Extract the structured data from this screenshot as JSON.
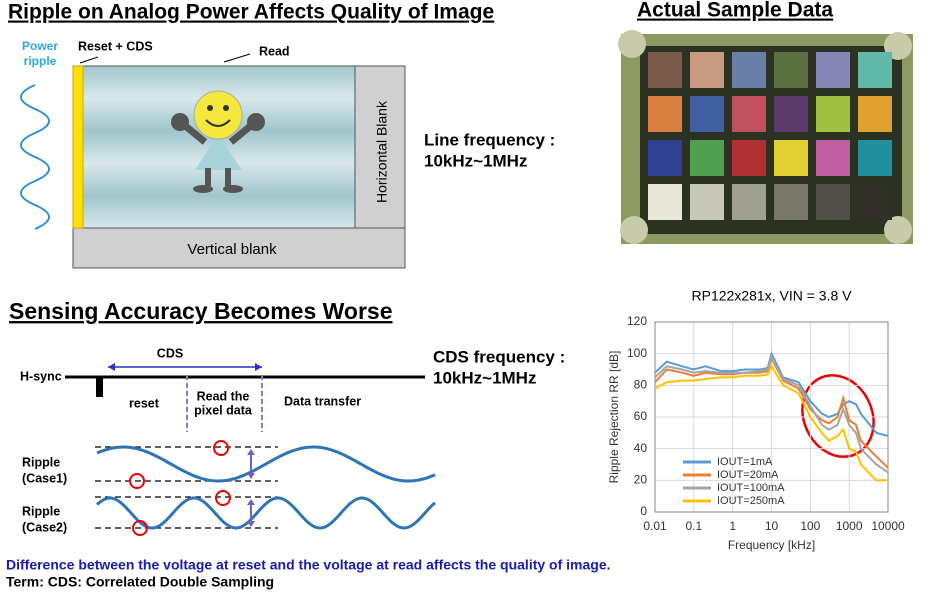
{
  "slide": {
    "top_left": {
      "title": "Ripple on Analog Power Affects Quality of Image",
      "power_ripple": [
        "Power",
        "ripple"
      ],
      "reset_cds": "Reset + CDS",
      "read": "Read",
      "horizontal_blank": "Horizontal Blank",
      "vertical_blank": "Vertical blank",
      "line_frequency": [
        "Line frequency :",
        "10kHz~1MHz"
      ]
    },
    "top_right": {
      "title": "Actual Sample Data"
    },
    "bottom_left": {
      "title": "Sensing Accuracy Becomes Worse",
      "cds": "CDS",
      "h_sync": "H-sync",
      "reset": "reset",
      "read_pixel": [
        "Read the",
        "pixel data"
      ],
      "data_transfer": "Data transfer",
      "case1": [
        "Ripple",
        "(Case1)"
      ],
      "case2": [
        "Ripple",
        "(Case2)"
      ],
      "cds_frequency": [
        "CDS frequency :",
        "10kHz~1MHz"
      ]
    },
    "footer": [
      "Difference between the voltage at reset and the voltage at read affects the quality of image.",
      "Term: CDS: Correlated Double Sampling"
    ]
  },
  "chart_data": {
    "type": "line",
    "title": "RP122x281x, VIN = 3.8 V",
    "x_label": "Frequency [kHz]",
    "y_label": "Ripple Rejection RR [dB]",
    "log_x": true,
    "grid": true,
    "legend": "lower left",
    "xlim": [
      0.01,
      10000
    ],
    "xticks": [
      0.01,
      0.1,
      1,
      10,
      100,
      1000,
      10000
    ],
    "ylim": [
      0,
      120
    ],
    "yticks": [
      0,
      20,
      40,
      60,
      80,
      100,
      120
    ],
    "x": [
      0.01,
      0.02,
      0.05,
      0.1,
      0.2,
      0.5,
      1,
      2,
      5,
      8,
      10,
      20,
      50,
      100,
      200,
      300,
      500,
      700,
      1000,
      1500,
      2000,
      5000,
      10000
    ],
    "series": [
      {
        "name": "IOUT=1mA",
        "color": "#5b9bd5",
        "values": [
          88,
          95,
          92,
          90,
          92,
          89,
          89,
          90,
          90,
          91,
          100,
          85,
          82,
          70,
          62,
          60,
          62,
          68,
          70,
          68,
          62,
          50,
          48
        ]
      },
      {
        "name": "IOUT=20mA",
        "color": "#ed7d31",
        "values": [
          82,
          90,
          88,
          86,
          88,
          87,
          87,
          88,
          88,
          89,
          97,
          83,
          78,
          65,
          58,
          56,
          60,
          72,
          58,
          55,
          45,
          35,
          28
        ]
      },
      {
        "name": "IOUT=100mA",
        "color": "#a5a5a5",
        "values": [
          85,
          92,
          90,
          88,
          89,
          88,
          88,
          88,
          89,
          90,
          98,
          84,
          80,
          67,
          55,
          52,
          55,
          65,
          55,
          50,
          40,
          30,
          25
        ]
      },
      {
        "name": "IOUT=250mA",
        "color": "#ffc000",
        "values": [
          78,
          82,
          83,
          83,
          84,
          85,
          85,
          86,
          86,
          87,
          92,
          80,
          75,
          60,
          50,
          45,
          48,
          52,
          40,
          38,
          30,
          20,
          20
        ]
      }
    ]
  }
}
